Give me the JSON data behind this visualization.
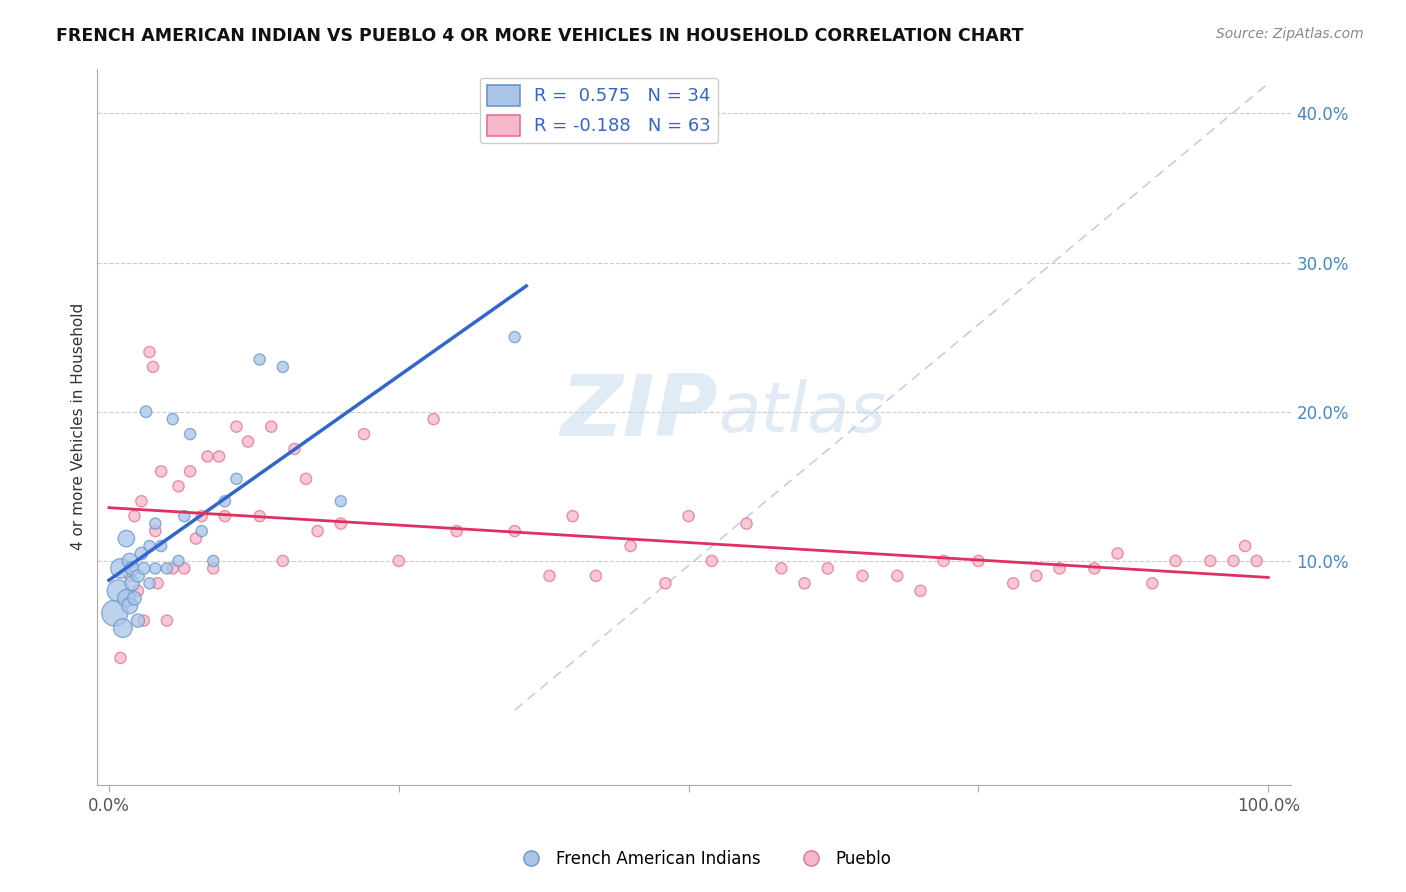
{
  "title": "FRENCH AMERICAN INDIAN VS PUEBLO 4 OR MORE VEHICLES IN HOUSEHOLD CORRELATION CHART",
  "source": "Source: ZipAtlas.com",
  "ylabel": "4 or more Vehicles in Household",
  "xlim": [
    -0.01,
    1.02
  ],
  "ylim": [
    -0.05,
    0.43
  ],
  "blue_color": "#aac4e8",
  "pink_color": "#f5b8c8",
  "blue_edge_color": "#6699cc",
  "pink_edge_color": "#e87090",
  "blue_line_color": "#3366cc",
  "pink_line_color": "#e03060",
  "watermark_color": "#c5d8ee",
  "blue_x": [
    0.005,
    0.008,
    0.01,
    0.012,
    0.015,
    0.015,
    0.018,
    0.018,
    0.02,
    0.02,
    0.022,
    0.025,
    0.025,
    0.028,
    0.03,
    0.032,
    0.035,
    0.035,
    0.04,
    0.04,
    0.045,
    0.05,
    0.055,
    0.06,
    0.065,
    0.07,
    0.08,
    0.09,
    0.1,
    0.11,
    0.13,
    0.15,
    0.2,
    0.35
  ],
  "blue_y": [
    0.065,
    0.08,
    0.095,
    0.055,
    0.075,
    0.115,
    0.07,
    0.1,
    0.085,
    0.095,
    0.075,
    0.06,
    0.09,
    0.105,
    0.095,
    0.2,
    0.11,
    0.085,
    0.095,
    0.125,
    0.11,
    0.095,
    0.195,
    0.1,
    0.13,
    0.185,
    0.12,
    0.1,
    0.14,
    0.155,
    0.235,
    0.23,
    0.14,
    0.25
  ],
  "blue_sizes": [
    350,
    250,
    200,
    180,
    160,
    140,
    130,
    120,
    110,
    100,
    95,
    90,
    85,
    80,
    75,
    70,
    65,
    65,
    65,
    65,
    65,
    65,
    65,
    65,
    65,
    65,
    65,
    65,
    65,
    65,
    65,
    65,
    65,
    65
  ],
  "pink_x": [
    0.01,
    0.018,
    0.022,
    0.025,
    0.028,
    0.03,
    0.035,
    0.038,
    0.04,
    0.042,
    0.045,
    0.05,
    0.055,
    0.06,
    0.065,
    0.07,
    0.075,
    0.08,
    0.085,
    0.09,
    0.095,
    0.1,
    0.11,
    0.12,
    0.13,
    0.14,
    0.15,
    0.16,
    0.17,
    0.18,
    0.2,
    0.22,
    0.25,
    0.28,
    0.3,
    0.35,
    0.38,
    0.4,
    0.42,
    0.45,
    0.48,
    0.5,
    0.52,
    0.55,
    0.58,
    0.6,
    0.62,
    0.65,
    0.68,
    0.7,
    0.72,
    0.75,
    0.78,
    0.8,
    0.82,
    0.85,
    0.87,
    0.9,
    0.92,
    0.95,
    0.97,
    0.98,
    0.99
  ],
  "pink_y": [
    0.035,
    0.09,
    0.13,
    0.08,
    0.14,
    0.06,
    0.24,
    0.23,
    0.12,
    0.085,
    0.16,
    0.06,
    0.095,
    0.15,
    0.095,
    0.16,
    0.115,
    0.13,
    0.17,
    0.095,
    0.17,
    0.13,
    0.19,
    0.18,
    0.13,
    0.19,
    0.1,
    0.175,
    0.155,
    0.12,
    0.125,
    0.185,
    0.1,
    0.195,
    0.12,
    0.12,
    0.09,
    0.13,
    0.09,
    0.11,
    0.085,
    0.13,
    0.1,
    0.125,
    0.095,
    0.085,
    0.095,
    0.09,
    0.09,
    0.08,
    0.1,
    0.1,
    0.085,
    0.09,
    0.095,
    0.095,
    0.105,
    0.085,
    0.1,
    0.1,
    0.1,
    0.11,
    0.1
  ],
  "pink_sizes": [
    65,
    65,
    65,
    65,
    65,
    65,
    65,
    65,
    65,
    65,
    65,
    65,
    65,
    65,
    65,
    65,
    65,
    65,
    65,
    65,
    65,
    65,
    65,
    65,
    65,
    65,
    65,
    65,
    65,
    65,
    65,
    65,
    65,
    65,
    65,
    65,
    65,
    65,
    65,
    65,
    65,
    65,
    65,
    65,
    65,
    65,
    65,
    65,
    65,
    65,
    65,
    65,
    65,
    65,
    65,
    65,
    65,
    65,
    65,
    65,
    65,
    65,
    65
  ]
}
